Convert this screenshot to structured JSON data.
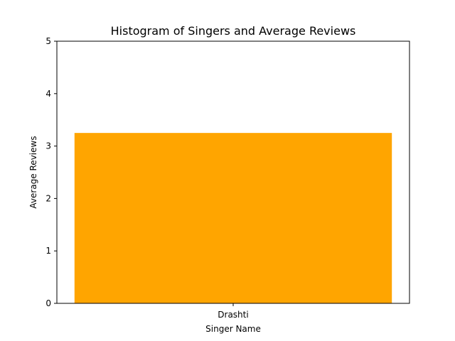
{
  "chart_data": {
    "type": "bar",
    "title": "Histogram of Singers and Average Reviews",
    "xlabel": "Singer Name",
    "ylabel": "Average Reviews",
    "categories": [
      "Drashti"
    ],
    "values": [
      3.25
    ],
    "ylim": [
      0,
      5
    ],
    "yticks": [
      0,
      1,
      2,
      3,
      4,
      5
    ],
    "bar_color": "#ffa500",
    "grid": false,
    "legend": "none"
  }
}
